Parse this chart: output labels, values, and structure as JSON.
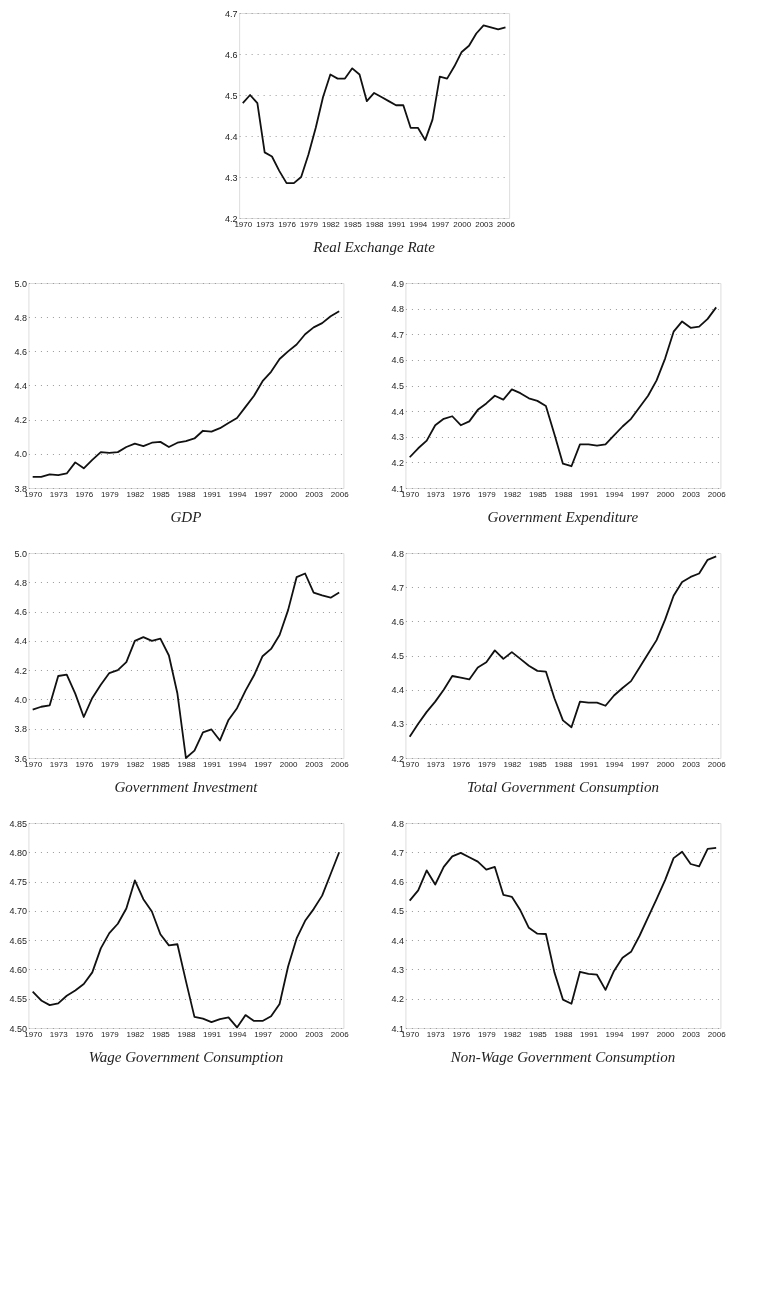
{
  "chart_data": [
    {
      "type": "line",
      "title": "Real Exchange Rate",
      "color": "#111111",
      "grid": "y",
      "categories": [
        "1970",
        null,
        null,
        "1973",
        null,
        null,
        "1976",
        null,
        null,
        "1979",
        null,
        null,
        "1982",
        null,
        null,
        "1985",
        null,
        null,
        "1988",
        null,
        null,
        "1991",
        null,
        null,
        "1994",
        null,
        null,
        "1997",
        null,
        null,
        "2000",
        null,
        null,
        "2003",
        null,
        null,
        "2006"
      ],
      "ylim": [
        4.2,
        4.7
      ],
      "yticks": [
        4.2,
        4.3,
        4.4,
        4.5,
        4.6,
        4.7
      ],
      "values": [
        4.48,
        4.5,
        4.48,
        4.36,
        4.35,
        4.315,
        4.285,
        4.285,
        4.3,
        4.355,
        4.42,
        4.495,
        4.55,
        4.54,
        4.54,
        4.565,
        4.55,
        4.485,
        4.505,
        4.495,
        4.485,
        4.475,
        4.475,
        4.42,
        4.42,
        4.39,
        4.44,
        4.545,
        4.54,
        4.57,
        4.605,
        4.62,
        4.65,
        4.67,
        4.665,
        4.66,
        4.665
      ]
    },
    {
      "type": "line",
      "title": "GDP",
      "color": "#111111",
      "grid": "y",
      "categories": [
        "1970",
        null,
        null,
        "1973",
        null,
        null,
        "1976",
        null,
        null,
        "1979",
        null,
        null,
        "1982",
        null,
        null,
        "1985",
        null,
        null,
        "1988",
        null,
        null,
        "1991",
        null,
        null,
        "1994",
        null,
        null,
        "1997",
        null,
        null,
        "2000",
        null,
        null,
        "2003",
        null,
        null,
        "2006"
      ],
      "ylim": [
        3.8,
        5.0
      ],
      "yticks": [
        3.8,
        {
          "value": 4.0,
          "label": "4.0"
        },
        4.2,
        4.4,
        4.6,
        4.8,
        {
          "value": 5.0,
          "label": "5.0"
        }
      ],
      "values": [
        3.865,
        3.865,
        3.88,
        3.875,
        3.885,
        3.95,
        3.915,
        3.965,
        4.01,
        4.005,
        4.01,
        4.04,
        4.06,
        4.045,
        4.065,
        4.07,
        4.04,
        4.065,
        4.075,
        4.09,
        4.135,
        4.13,
        4.15,
        4.18,
        4.21,
        4.275,
        4.34,
        4.425,
        4.48,
        4.555,
        4.6,
        4.64,
        4.7,
        4.74,
        4.765,
        4.805,
        4.835
      ]
    },
    {
      "type": "line",
      "title": "Government Expenditure",
      "color": "#111111",
      "grid": "y",
      "categories": [
        "1970",
        null,
        null,
        "1973",
        null,
        null,
        "1976",
        null,
        null,
        "1979",
        null,
        null,
        "1982",
        null,
        null,
        "1985",
        null,
        null,
        "1988",
        null,
        null,
        "1991",
        null,
        null,
        "1994",
        null,
        null,
        "1997",
        null,
        null,
        "2000",
        null,
        null,
        "2003",
        null,
        null,
        "2006"
      ],
      "ylim": [
        4.1,
        4.9
      ],
      "yticks": [
        4.1,
        4.2,
        4.3,
        4.4,
        4.5,
        4.6,
        4.7,
        4.8,
        4.9
      ],
      "values": [
        4.22,
        4.255,
        4.285,
        4.345,
        4.37,
        4.38,
        4.345,
        4.36,
        4.405,
        4.43,
        4.46,
        4.445,
        4.485,
        4.47,
        4.45,
        4.44,
        4.42,
        4.31,
        4.195,
        4.185,
        4.27,
        4.27,
        4.265,
        4.27,
        4.305,
        4.34,
        4.37,
        4.415,
        4.46,
        4.52,
        4.605,
        4.71,
        4.75,
        4.725,
        4.73,
        4.76,
        4.805
      ]
    },
    {
      "type": "line",
      "title": "Government Investment",
      "color": "#111111",
      "grid": "y",
      "categories": [
        "1970",
        null,
        null,
        "1973",
        null,
        null,
        "1976",
        null,
        null,
        "1979",
        null,
        null,
        "1982",
        null,
        null,
        "1985",
        null,
        null,
        "1988",
        null,
        null,
        "1991",
        null,
        null,
        "1994",
        null,
        null,
        "1997",
        null,
        null,
        "2000",
        null,
        null,
        "2003",
        null,
        null,
        "2006"
      ],
      "ylim": [
        3.6,
        5.0
      ],
      "yticks": [
        3.6,
        3.8,
        {
          "value": 4.0,
          "label": "4.0"
        },
        4.2,
        4.4,
        4.6,
        4.8,
        {
          "value": 5.0,
          "label": "5.0"
        }
      ],
      "values": [
        3.93,
        3.95,
        3.96,
        4.16,
        4.17,
        4.04,
        3.88,
        4.01,
        4.1,
        4.18,
        4.2,
        4.255,
        4.4,
        4.425,
        4.4,
        4.415,
        4.3,
        4.04,
        3.6,
        3.65,
        3.775,
        3.795,
        3.72,
        3.86,
        3.94,
        4.06,
        4.165,
        4.295,
        4.345,
        4.44,
        4.61,
        4.835,
        4.86,
        4.73,
        4.71,
        4.695,
        4.73
      ]
    },
    {
      "type": "line",
      "title": "Total Government Consumption",
      "color": "#111111",
      "grid": "y",
      "categories": [
        "1970",
        null,
        null,
        "1973",
        null,
        null,
        "1976",
        null,
        null,
        "1979",
        null,
        null,
        "1982",
        null,
        null,
        "1985",
        null,
        null,
        "1988",
        null,
        null,
        "1991",
        null,
        null,
        "1994",
        null,
        null,
        "1997",
        null,
        null,
        "2000",
        null,
        null,
        "2003",
        null,
        null,
        "2006"
      ],
      "ylim": [
        4.2,
        4.8
      ],
      "yticks": [
        4.2,
        4.3,
        4.4,
        4.5,
        4.6,
        4.7,
        4.8
      ],
      "values": [
        4.262,
        4.3,
        4.335,
        4.365,
        4.4,
        4.44,
        4.435,
        4.43,
        4.465,
        4.48,
        4.515,
        4.49,
        4.51,
        4.49,
        4.47,
        4.455,
        4.453,
        4.375,
        4.31,
        4.29,
        4.365,
        4.362,
        4.362,
        4.353,
        4.383,
        4.405,
        4.425,
        4.465,
        4.505,
        4.545,
        4.605,
        4.675,
        4.715,
        4.73,
        4.74,
        4.78,
        4.79
      ]
    },
    {
      "type": "line",
      "title": "Wage Government Consumption",
      "color": "#111111",
      "grid": "y",
      "categories": [
        "1970",
        null,
        null,
        "1973",
        null,
        null,
        "1976",
        null,
        null,
        "1979",
        null,
        null,
        "1982",
        null,
        null,
        "1985",
        null,
        null,
        "1988",
        null,
        null,
        "1991",
        null,
        null,
        "1994",
        null,
        null,
        "1997",
        null,
        null,
        "2000",
        null,
        null,
        "2003",
        null,
        null,
        "2006"
      ],
      "ylim": [
        4.5,
        4.85
      ],
      "yticks": [
        {
          "value": 4.5,
          "label": "4.50"
        },
        4.55,
        {
          "value": 4.6,
          "label": "4.60"
        },
        4.65,
        {
          "value": 4.7,
          "label": "4.70"
        },
        4.75,
        {
          "value": 4.8,
          "label": "4.80"
        },
        4.85
      ],
      "values": [
        4.562,
        4.547,
        4.539,
        4.542,
        4.555,
        4.564,
        4.575,
        4.595,
        4.636,
        4.662,
        4.678,
        4.704,
        4.752,
        4.72,
        4.699,
        4.66,
        4.641,
        4.643,
        4.58,
        4.519,
        4.516,
        4.51,
        4.515,
        4.518,
        4.501,
        4.522,
        4.512,
        4.512,
        4.52,
        4.541,
        4.605,
        4.653,
        4.683,
        4.703,
        4.726,
        4.763,
        4.8
      ]
    },
    {
      "type": "line",
      "title": "Non-Wage Government Consumption",
      "color": "#111111",
      "grid": "y",
      "categories": [
        "1970",
        null,
        null,
        "1973",
        null,
        null,
        "1976",
        null,
        null,
        "1979",
        null,
        null,
        "1982",
        null,
        null,
        "1985",
        null,
        null,
        "1988",
        null,
        null,
        "1991",
        null,
        null,
        "1994",
        null,
        null,
        "1997",
        null,
        null,
        "2000",
        null,
        null,
        "2003",
        null,
        null,
        "2006"
      ],
      "ylim": [
        4.1,
        4.8
      ],
      "yticks": [
        4.1,
        4.2,
        4.3,
        4.4,
        4.5,
        4.6,
        4.7,
        4.8
      ],
      "values": [
        4.535,
        4.57,
        4.638,
        4.59,
        4.65,
        4.686,
        4.698,
        4.683,
        4.668,
        4.641,
        4.65,
        4.555,
        4.548,
        4.502,
        4.442,
        4.422,
        4.421,
        4.29,
        4.197,
        4.183,
        4.292,
        4.285,
        4.282,
        4.23,
        4.295,
        4.34,
        4.36,
        4.415,
        4.478,
        4.54,
        4.605,
        4.68,
        4.702,
        4.66,
        4.652,
        4.712,
        4.715
      ]
    }
  ]
}
